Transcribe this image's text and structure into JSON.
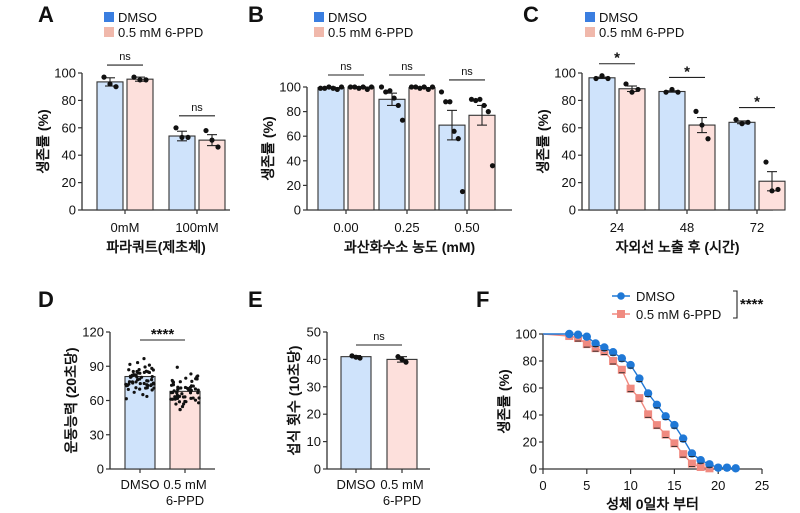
{
  "colors": {
    "dmso_fill": "#cfe3fb",
    "ppd_fill": "#fde0dc",
    "dmso_legend": "#3a7ee0",
    "ppd_legend": "#f0b8ab",
    "dmso_line": "#1f78d6",
    "ppd_line": "#f08a80",
    "axis": "#333333",
    "dot": "#111111"
  },
  "chart_data": [
    {
      "id": "A",
      "panel_label": "A",
      "type": "bar",
      "title": "",
      "legend": [
        "DMSO",
        "0.5 mM 6-PPD"
      ],
      "legend_position": "top-left",
      "categories": [
        "0mM",
        "100mM"
      ],
      "xlabel": "파라쿼트(제초체)",
      "ylabel": "생존률 (%)",
      "ylim": [
        0,
        100
      ],
      "yticks": [
        0,
        20,
        40,
        60,
        80,
        100
      ],
      "series": [
        {
          "name": "DMSO",
          "values": [
            93.5,
            54
          ],
          "errors": [
            3,
            3.5
          ],
          "points": [
            [
              97,
              92,
              90
            ],
            [
              60,
              53,
              53
            ]
          ]
        },
        {
          "name": "0.5 mM 6-PPD",
          "values": [
            95.5,
            51
          ],
          "errors": [
            1.5,
            4
          ],
          "points": [
            [
              97,
              95,
              95
            ],
            [
              58,
              51,
              46
            ]
          ]
        }
      ],
      "significance": [
        "ns",
        "ns"
      ]
    },
    {
      "id": "B",
      "panel_label": "B",
      "type": "bar",
      "title": "",
      "legend": [
        "DMSO",
        "0.5 mM 6-PPD"
      ],
      "legend_position": "top-left",
      "categories": [
        "0.00",
        "0.25",
        "0.50"
      ],
      "xlabel": "과산화수소 농도 (mM)",
      "ylabel": "생존률 (%)",
      "ylim": [
        0,
        100
      ],
      "yticks": [
        0,
        20,
        40,
        60,
        80,
        100
      ],
      "series": [
        {
          "name": "DMSO",
          "values": [
            99.5,
            90,
            69
          ],
          "errors": [
            0.5,
            5,
            12
          ],
          "points": [
            [
              99,
              99,
              100,
              99,
              98,
              100
            ],
            [
              100,
              96,
              97,
              91,
              85,
              73
            ],
            [
              96,
              88,
              88,
              64,
              58,
              15
            ]
          ]
        },
        {
          "name": "0.5 mM 6-PPD",
          "values": [
            100,
            99.5,
            77
          ],
          "errors": [
            0.3,
            0.5,
            8
          ],
          "points": [
            [
              100,
              100,
              99,
              100,
              98,
              100
            ],
            [
              100,
              100,
              99,
              100,
              98,
              100
            ],
            [
              90,
              89,
              90,
              85,
              80,
              36
            ]
          ]
        }
      ],
      "significance": [
        "ns",
        "ns",
        "ns"
      ]
    },
    {
      "id": "C",
      "panel_label": "C",
      "type": "bar",
      "title": "",
      "legend": [
        "DMSO",
        "0.5 mM 6-PPD"
      ],
      "legend_position": "top-left",
      "categories": [
        "24",
        "48",
        "72"
      ],
      "xlabel": "자외선 노출 후 (시간)",
      "ylabel": "생존률 (%)",
      "ylim": [
        0,
        100
      ],
      "yticks": [
        0,
        20,
        40,
        60,
        80,
        100
      ],
      "series": [
        {
          "name": "DMSO",
          "values": [
            96.5,
            86.5,
            64
          ],
          "errors": [
            0.5,
            0.5,
            1
          ],
          "points": [
            [
              96,
              98,
              96
            ],
            [
              86,
              88,
              86
            ],
            [
              66,
              63,
              64
            ]
          ]
        },
        {
          "name": "0.5 mM 6-PPD",
          "values": [
            88.5,
            62,
            21
          ],
          "errors": [
            2,
            5.5,
            7
          ],
          "points": [
            [
              92,
              86,
              88
            ],
            [
              72,
              62,
              52
            ],
            [
              35,
              14,
              15
            ]
          ]
        }
      ],
      "significance": [
        "*",
        "*",
        "*"
      ]
    },
    {
      "id": "D",
      "panel_label": "D",
      "type": "bar",
      "title": "",
      "categories": [
        "DMSO",
        "0.5 mM\n6-PPD"
      ],
      "category_lines": [
        [
          "DMSO"
        ],
        [
          "0.5 mM",
          "6-PPD"
        ]
      ],
      "xlabel": "",
      "ylabel": "운동능력 (20초당)",
      "ylim": [
        0,
        120
      ],
      "yticks": [
        0,
        30,
        60,
        90,
        120
      ],
      "series": [
        {
          "name": "DMSO",
          "values": [
            81
          ],
          "range": [
            57,
            104
          ],
          "n": 60
        },
        {
          "name": "0.5 mM 6-PPD",
          "values": [
            68
          ],
          "range": [
            46,
            94
          ],
          "n": 60
        }
      ],
      "significance": [
        "****"
      ]
    },
    {
      "id": "E",
      "panel_label": "E",
      "type": "bar",
      "title": "",
      "categories": [
        "DMSO",
        "0.5 mM\n6-PPD"
      ],
      "category_lines": [
        [
          "DMSO"
        ],
        [
          "0.5 mM",
          "6-PPD"
        ]
      ],
      "xlabel": "",
      "ylabel": "섭식 횟수 (10초당)",
      "ylim": [
        0,
        50
      ],
      "yticks": [
        0,
        10,
        20,
        30,
        40,
        50
      ],
      "series": [
        {
          "name": "DMSO",
          "values": [
            41
          ],
          "errors": [
            0.4
          ],
          "points": [
            [
              41.3,
              40.8,
              40.5
            ]
          ]
        },
        {
          "name": "0.5 mM 6-PPD",
          "values": [
            40
          ],
          "errors": [
            1
          ],
          "points": [
            [
              41,
              40,
              39
            ]
          ]
        }
      ],
      "significance": [
        "ns"
      ]
    },
    {
      "id": "F",
      "panel_label": "F",
      "type": "line",
      "title": "",
      "legend": [
        "DMSO",
        "0.5 mM 6-PPD"
      ],
      "legend_position": "top-right",
      "significance": [
        "****"
      ],
      "xlabel": "성체 0일차 부터",
      "ylabel": "생존률 (%)",
      "xlim": [
        0,
        25
      ],
      "ylim": [
        0,
        100
      ],
      "xticks": [
        0,
        5,
        10,
        15,
        20,
        25
      ],
      "yticks": [
        0,
        20,
        40,
        60,
        80,
        100
      ],
      "series": [
        {
          "name": "DMSO",
          "marker": "circle",
          "x": [
            0,
            3,
            4,
            5,
            6,
            7,
            8,
            9,
            10,
            11,
            12,
            13,
            14,
            15,
            16,
            17,
            18,
            19,
            20,
            21,
            22
          ],
          "y": [
            100,
            100,
            99.5,
            98,
            93,
            90,
            86.5,
            82,
            77,
            67,
            56,
            47.5,
            39,
            32.5,
            22.5,
            11.5,
            6.5,
            3.5,
            1,
            1,
            0.5
          ]
        },
        {
          "name": "0.5 mM 6-PPD",
          "marker": "square",
          "x": [
            0,
            3,
            4,
            5,
            6,
            7,
            8,
            9,
            10,
            11,
            12,
            13,
            14,
            15,
            16,
            17,
            18,
            19
          ],
          "y": [
            100,
            98.5,
            97,
            92.5,
            89.5,
            87,
            80,
            73.5,
            59.5,
            52.5,
            40.5,
            32.5,
            25.5,
            19,
            11,
            4,
            1.5,
            0.5
          ]
        }
      ]
    }
  ]
}
